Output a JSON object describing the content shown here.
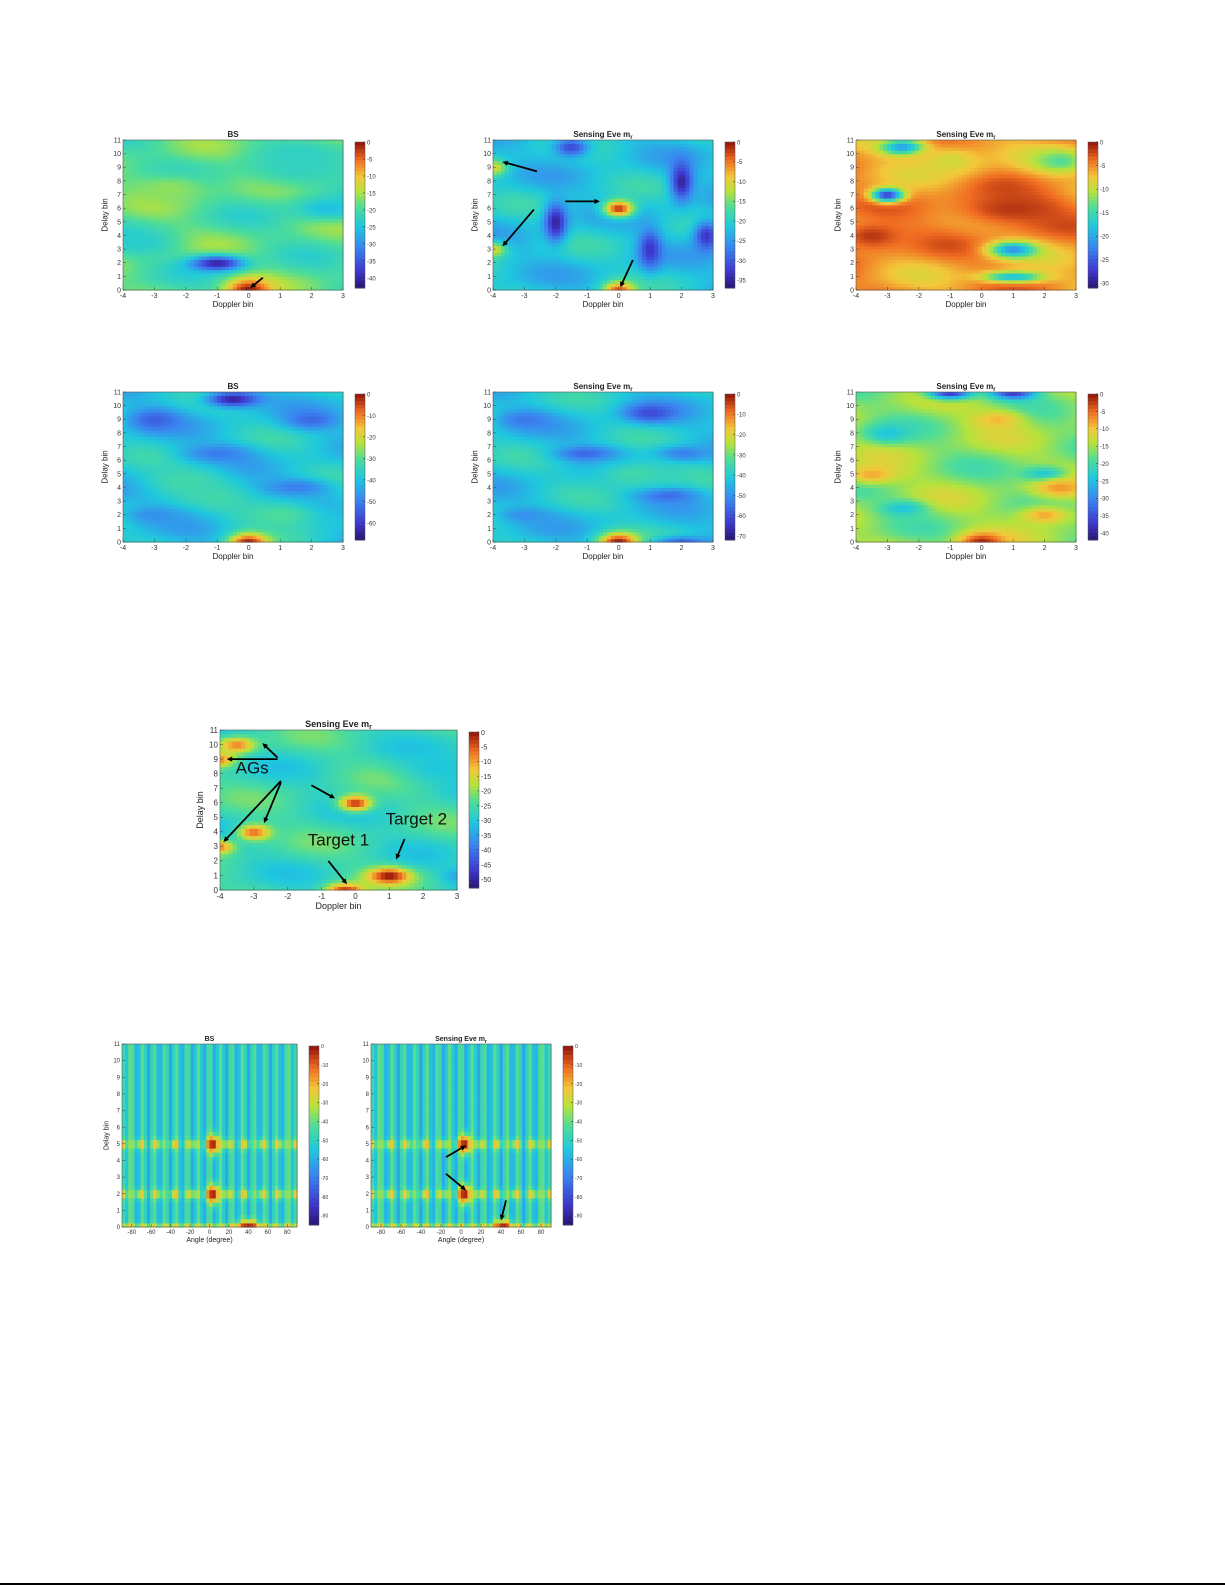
{
  "chart_data": [
    {
      "id": "r1c1",
      "type": "heatmap",
      "title": "BS",
      "title_sub": "",
      "xlabel": "Doppler bin",
      "ylabel": "Delay bin",
      "x_ticks": [
        "-4",
        "-3",
        "-2",
        "-1",
        "0",
        "1",
        "2",
        "3"
      ],
      "y_ticks": [
        "0",
        "1",
        "2",
        "3",
        "4",
        "5",
        "6",
        "7",
        "8",
        "9",
        "10",
        "11"
      ],
      "xlim": [
        -4,
        3
      ],
      "ylim": [
        0,
        11
      ],
      "colorbar_ticks": [
        "0",
        "-5",
        "-10",
        "-15",
        "-20",
        "-25",
        "-30",
        "-35",
        "-40"
      ],
      "clim": [
        -43,
        0
      ],
      "base_level": 0.55,
      "features": [
        {
          "x": 0,
          "y": 0,
          "level": 1.0,
          "sx": 0.5,
          "sy": 0.6
        },
        {
          "x": -1,
          "y": 2,
          "level": 0.05,
          "sx": 0.6,
          "sy": 0.4
        },
        {
          "x": -3.5,
          "y": 3.5,
          "level": 0.45,
          "sx": 0.8,
          "sy": 0.6
        },
        {
          "x": 2.5,
          "y": 6,
          "level": 0.4,
          "sx": 0.8,
          "sy": 0.6
        },
        {
          "x": 1.5,
          "y": 9,
          "level": 0.48,
          "sx": 1.2,
          "sy": 1.0
        },
        {
          "x": -2.5,
          "y": 7.5,
          "level": 0.62,
          "sx": 1.0,
          "sy": 0.8
        }
      ],
      "annotations": []
    },
    {
      "id": "r1c2",
      "type": "heatmap",
      "title": "Sensing Eve m",
      "title_sub": "r",
      "xlabel": "Doppler bin",
      "ylabel": "Delay bin",
      "x_ticks": [
        "-4",
        "-3",
        "-2",
        "-1",
        "0",
        "1",
        "2",
        "3"
      ],
      "y_ticks": [
        "0",
        "1",
        "2",
        "3",
        "4",
        "5",
        "6",
        "7",
        "8",
        "9",
        "10",
        "11"
      ],
      "xlim": [
        -4,
        3
      ],
      "ylim": [
        0,
        11
      ],
      "colorbar_ticks": [
        "0",
        "-5",
        "-10",
        "-15",
        "-20",
        "-25",
        "-30",
        "-35"
      ],
      "clim": [
        -37,
        0
      ],
      "base_level": 0.42,
      "features": [
        {
          "x": 0,
          "y": 6,
          "level": 0.95,
          "sx": 0.35,
          "sy": 0.45
        },
        {
          "x": 0,
          "y": 0,
          "level": 0.92,
          "sx": 0.35,
          "sy": 0.45
        },
        {
          "x": -4,
          "y": 9,
          "level": 0.72,
          "sx": 0.3,
          "sy": 0.4
        },
        {
          "x": -4,
          "y": 3,
          "level": 0.72,
          "sx": 0.3,
          "sy": 0.4
        },
        {
          "x": -2,
          "y": 5,
          "level": 0.05,
          "sx": 0.25,
          "sy": 1.0
        },
        {
          "x": 2,
          "y": 8,
          "level": 0.05,
          "sx": 0.25,
          "sy": 1.0
        },
        {
          "x": 1,
          "y": 3,
          "level": 0.1,
          "sx": 0.25,
          "sy": 1.0
        },
        {
          "x": -1.5,
          "y": 10.5,
          "level": 0.15,
          "sx": 0.4,
          "sy": 0.5
        },
        {
          "x": 2.8,
          "y": 4,
          "level": 0.1,
          "sx": 0.3,
          "sy": 0.8
        }
      ],
      "annotations": []
    },
    {
      "id": "r1c3",
      "type": "heatmap",
      "title": "Sensing Eve m",
      "title_sub": "r",
      "xlabel": "Doppler bin",
      "ylabel": "Delay bin",
      "x_ticks": [
        "-4",
        "-3",
        "-2",
        "-1",
        "0",
        "1",
        "2",
        "3"
      ],
      "y_ticks": [
        "0",
        "1",
        "2",
        "3",
        "4",
        "5",
        "6",
        "7",
        "8",
        "9",
        "10",
        "11"
      ],
      "xlim": [
        -4,
        3
      ],
      "ylim": [
        0,
        11
      ],
      "colorbar_ticks": [
        "0",
        "-5",
        "-10",
        "-15",
        "-20",
        "-25",
        "-30"
      ],
      "clim": [
        -31,
        0
      ],
      "base_level": 0.82,
      "features": [
        {
          "x": -3,
          "y": 7,
          "level": 0.1,
          "sx": 0.35,
          "sy": 0.35
        },
        {
          "x": -2.5,
          "y": 10.5,
          "level": 0.3,
          "sx": 0.5,
          "sy": 0.4
        },
        {
          "x": 1,
          "y": 3,
          "level": 0.3,
          "sx": 0.5,
          "sy": 0.4
        },
        {
          "x": 2.5,
          "y": 9.5,
          "level": 0.55,
          "sx": 0.6,
          "sy": 0.6
        },
        {
          "x": 1,
          "y": 1,
          "level": 0.4,
          "sx": 0.7,
          "sy": 0.3
        },
        {
          "x": 1,
          "y": 6,
          "level": 0.95,
          "sx": 1.5,
          "sy": 1.0
        },
        {
          "x": -3.5,
          "y": 4,
          "level": 0.95,
          "sx": 0.8,
          "sy": 0.8
        },
        {
          "x": -1,
          "y": 9.5,
          "level": 0.7,
          "sx": 0.8,
          "sy": 0.8
        }
      ],
      "annotations": []
    },
    {
      "id": "r2c1",
      "type": "heatmap",
      "title": "BS",
      "title_sub": "",
      "xlabel": "Doppler bin",
      "ylabel": "Delay bin",
      "x_ticks": [
        "-4",
        "-3",
        "-2",
        "-1",
        "0",
        "1",
        "2",
        "3"
      ],
      "y_ticks": [
        "0",
        "1",
        "2",
        "3",
        "4",
        "5",
        "6",
        "7",
        "8",
        "9",
        "10",
        "11"
      ],
      "xlim": [
        -4,
        3
      ],
      "ylim": [
        0,
        11
      ],
      "colorbar_ticks": [
        "0",
        "-10",
        "-20",
        "-30",
        "-40",
        "-50",
        "-60"
      ],
      "clim": [
        -68,
        0
      ],
      "base_level": 0.42,
      "features": [
        {
          "x": 0,
          "y": 0,
          "level": 1.0,
          "sx": 0.45,
          "sy": 0.5
        },
        {
          "x": -0.5,
          "y": 10.5,
          "level": 0.05,
          "sx": 0.6,
          "sy": 0.4
        },
        {
          "x": -3,
          "y": 9,
          "level": 0.2,
          "sx": 0.6,
          "sy": 0.6
        },
        {
          "x": 2,
          "y": 9,
          "level": 0.22,
          "sx": 0.6,
          "sy": 0.5
        },
        {
          "x": -1,
          "y": 6.5,
          "level": 0.25,
          "sx": 0.8,
          "sy": 0.5
        },
        {
          "x": 1.5,
          "y": 4,
          "level": 0.25,
          "sx": 0.8,
          "sy": 0.5
        },
        {
          "x": -3,
          "y": 2,
          "level": 0.3,
          "sx": 0.7,
          "sy": 0.5
        },
        {
          "x": 1,
          "y": 2,
          "level": 0.55,
          "sx": 1.0,
          "sy": 0.8
        },
        {
          "x": -2,
          "y": 4.5,
          "level": 0.52,
          "sx": 1.0,
          "sy": 0.8
        }
      ],
      "annotations": []
    },
    {
      "id": "r2c2",
      "type": "heatmap",
      "title": "Sensing Eve m",
      "title_sub": "r",
      "xlabel": "Doppler bin",
      "ylabel": "Delay bin",
      "x_ticks": [
        "-4",
        "-3",
        "-2",
        "-1",
        "0",
        "1",
        "2",
        "3"
      ],
      "y_ticks": [
        "0",
        "1",
        "2",
        "3",
        "4",
        "5",
        "6",
        "7",
        "8",
        "9",
        "10",
        "11"
      ],
      "xlim": [
        -4,
        3
      ],
      "ylim": [
        0,
        11
      ],
      "colorbar_ticks": [
        "0",
        "-10",
        "-20",
        "-30",
        "-40",
        "-50",
        "-60",
        "-70"
      ],
      "clim": [
        -72,
        0
      ],
      "base_level": 0.42,
      "features": [
        {
          "x": 0,
          "y": 0,
          "level": 1.0,
          "sx": 0.45,
          "sy": 0.5
        },
        {
          "x": 1,
          "y": 9.5,
          "level": 0.15,
          "sx": 0.6,
          "sy": 0.5
        },
        {
          "x": -1,
          "y": 6.5,
          "level": 0.2,
          "sx": 0.7,
          "sy": 0.4
        },
        {
          "x": -3,
          "y": 9,
          "level": 0.25,
          "sx": 0.6,
          "sy": 0.5
        },
        {
          "x": 2,
          "y": 6.5,
          "level": 0.25,
          "sx": 0.6,
          "sy": 0.4
        },
        {
          "x": 1.5,
          "y": 3.5,
          "level": 0.2,
          "sx": 0.7,
          "sy": 0.4
        },
        {
          "x": -3,
          "y": 2,
          "level": 0.3,
          "sx": 0.6,
          "sy": 0.4
        },
        {
          "x": 2,
          "y": 0,
          "level": 0.2,
          "sx": 0.6,
          "sy": 0.3
        },
        {
          "x": 0.5,
          "y": 5,
          "level": 0.52,
          "sx": 1.0,
          "sy": 0.8
        }
      ],
      "annotations": []
    },
    {
      "id": "r2c3",
      "type": "heatmap",
      "title": "Sensing Eve m",
      "title_sub": "r",
      "xlabel": "Doppler bin",
      "ylabel": "Delay bin",
      "x_ticks": [
        "-4",
        "-3",
        "-2",
        "-1",
        "0",
        "1",
        "2",
        "3"
      ],
      "y_ticks": [
        "0",
        "1",
        "2",
        "3",
        "4",
        "5",
        "6",
        "7",
        "8",
        "9",
        "10",
        "11"
      ],
      "xlim": [
        -4,
        3
      ],
      "ylim": [
        0,
        11
      ],
      "colorbar_ticks": [
        "0",
        "-5",
        "-10",
        "-15",
        "-20",
        "-25",
        "-30",
        "-35",
        "-40"
      ],
      "clim": [
        -42,
        0
      ],
      "base_level": 0.62,
      "features": [
        {
          "x": 0,
          "y": 0,
          "level": 0.98,
          "sx": 0.5,
          "sy": 0.5
        },
        {
          "x": -1,
          "y": 11,
          "level": 0.1,
          "sx": 0.5,
          "sy": 0.35
        },
        {
          "x": 1,
          "y": 11,
          "level": 0.1,
          "sx": 0.5,
          "sy": 0.35
        },
        {
          "x": -3,
          "y": 8,
          "level": 0.42,
          "sx": 0.5,
          "sy": 0.5
        },
        {
          "x": 2,
          "y": 5,
          "level": 0.4,
          "sx": 0.5,
          "sy": 0.4
        },
        {
          "x": -2.5,
          "y": 2.5,
          "level": 0.42,
          "sx": 0.5,
          "sy": 0.4
        },
        {
          "x": -3.5,
          "y": 5,
          "level": 0.8,
          "sx": 0.6,
          "sy": 0.5
        },
        {
          "x": 2.5,
          "y": 4,
          "level": 0.82,
          "sx": 0.6,
          "sy": 0.5
        },
        {
          "x": 2,
          "y": 2,
          "level": 0.8,
          "sx": 0.6,
          "sy": 0.5
        },
        {
          "x": 0.5,
          "y": 9,
          "level": 0.78,
          "sx": 0.6,
          "sy": 0.5
        }
      ],
      "annotations": []
    },
    {
      "id": "r3c1",
      "type": "heatmap",
      "title": "Sensing Eve m",
      "title_sub": "r",
      "xlabel": "Doppler bin",
      "ylabel": "Delay bin",
      "x_ticks": [
        "-4",
        "-3",
        "-2",
        "-1",
        "0",
        "1",
        "2",
        "3"
      ],
      "y_ticks": [
        "0",
        "1",
        "2",
        "3",
        "4",
        "5",
        "6",
        "7",
        "8",
        "9",
        "10",
        "11"
      ],
      "xlim": [
        -4,
        3
      ],
      "ylim": [
        0,
        11
      ],
      "colorbar_ticks": [
        "0",
        "-5",
        "-10",
        "-15",
        "-20",
        "-25",
        "-30",
        "-35",
        "-40",
        "-45",
        "-50"
      ],
      "clim": [
        -53,
        0
      ],
      "base_level": 0.5,
      "features": [
        {
          "x": 1,
          "y": 1,
          "level": 1.0,
          "sx": 0.45,
          "sy": 0.4
        },
        {
          "x": 0,
          "y": 6,
          "level": 0.95,
          "sx": 0.35,
          "sy": 0.4
        },
        {
          "x": -0.3,
          "y": 0,
          "level": 0.95,
          "sx": 0.4,
          "sy": 0.35
        },
        {
          "x": -3.5,
          "y": 10,
          "level": 0.85,
          "sx": 0.4,
          "sy": 0.4
        },
        {
          "x": -4,
          "y": 9,
          "level": 0.85,
          "sx": 0.3,
          "sy": 0.35
        },
        {
          "x": -3,
          "y": 4,
          "level": 0.88,
          "sx": 0.35,
          "sy": 0.4
        },
        {
          "x": -4,
          "y": 3,
          "level": 0.85,
          "sx": 0.3,
          "sy": 0.35
        },
        {
          "x": 3,
          "y": 1,
          "level": 0.35,
          "sx": 0.3,
          "sy": 0.4
        },
        {
          "x": 2.5,
          "y": 8.5,
          "level": 0.42,
          "sx": 0.8,
          "sy": 0.8
        }
      ],
      "annotations": [
        {
          "text": "AGs",
          "tx": -3.05,
          "ty": 8.0
        },
        {
          "text": "Target 1",
          "tx": -0.5,
          "ty": 3.05
        },
        {
          "text": "Target 2",
          "tx": 1.8,
          "ty": 4.5
        }
      ]
    },
    {
      "id": "r4c1",
      "type": "heatmap",
      "title": "BS",
      "title_sub": "",
      "xlabel": "Angle (degree)",
      "ylabel": "Delay bin",
      "x_ticks": [
        "-80",
        "-60",
        "-40",
        "-20",
        "0",
        "20",
        "40",
        "60",
        "80"
      ],
      "y_ticks": [
        "0",
        "1",
        "2",
        "3",
        "4",
        "5",
        "6",
        "7",
        "8",
        "9",
        "10",
        "11"
      ],
      "xlim": [
        -90,
        90
      ],
      "ylim": [
        0,
        11
      ],
      "colorbar_ticks": [
        "0",
        "-10",
        "-20",
        "-30",
        "-40",
        "-50",
        "-60",
        "-70",
        "-80",
        "-90"
      ],
      "clim": [
        -95,
        0
      ],
      "base_level": 0.45,
      "stripes": true,
      "features": [
        {
          "x": 4,
          "y": 5,
          "level": 1.0,
          "sx": 4,
          "sy": 0.4
        },
        {
          "x": 4,
          "y": 2,
          "level": 1.0,
          "sx": 4,
          "sy": 0.4
        },
        {
          "x": 40,
          "y": 0,
          "level": 1.0,
          "sx": 8,
          "sy": 0.3
        }
      ],
      "annotations": []
    },
    {
      "id": "r4c2",
      "type": "heatmap",
      "title": "Sensing Eve m",
      "title_sub": "r",
      "xlabel": "Angle (degree)",
      "ylabel": "",
      "x_ticks": [
        "-80",
        "-60",
        "-40",
        "-20",
        "0",
        "20",
        "40",
        "60",
        "80"
      ],
      "y_ticks": [
        "0",
        "1",
        "2",
        "3",
        "4",
        "5",
        "6",
        "7",
        "8",
        "9",
        "10",
        "11"
      ],
      "xlim": [
        -90,
        90
      ],
      "ylim": [
        0,
        11
      ],
      "colorbar_ticks": [
        "0",
        "-10",
        "-20",
        "-30",
        "-40",
        "-50",
        "-60",
        "-70",
        "-80",
        "-90"
      ],
      "clim": [
        -95,
        0
      ],
      "base_level": 0.45,
      "stripes": true,
      "features": [
        {
          "x": 4,
          "y": 5,
          "level": 1.0,
          "sx": 4,
          "sy": 0.4
        },
        {
          "x": 4,
          "y": 2,
          "level": 1.0,
          "sx": 4,
          "sy": 0.4
        },
        {
          "x": 42,
          "y": 0,
          "level": 1.0,
          "sx": 6,
          "sy": 0.3
        }
      ],
      "annotations": []
    }
  ]
}
